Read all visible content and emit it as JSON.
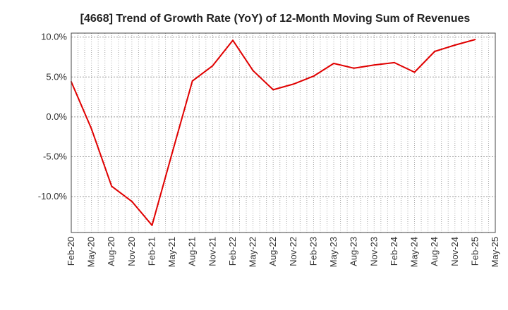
{
  "chart_data": {
    "type": "line",
    "title": "[4668]  Trend of Growth Rate (YoY) of 12-Month Moving Sum of Revenues",
    "xlabel": "",
    "ylabel": "",
    "x": [
      "Feb-20",
      "May-20",
      "Aug-20",
      "Nov-20",
      "Feb-21",
      "May-21",
      "Aug-21",
      "Nov-21",
      "Feb-22",
      "May-22",
      "Aug-22",
      "Nov-22",
      "Feb-23",
      "May-23",
      "Aug-23",
      "Nov-23",
      "Feb-24",
      "May-24",
      "Aug-24",
      "Nov-24",
      "Feb-25"
    ],
    "x_ticks": [
      "Feb-20",
      "May-20",
      "Aug-20",
      "Nov-20",
      "Feb-21",
      "May-21",
      "Aug-21",
      "Nov-21",
      "Feb-22",
      "May-22",
      "Aug-22",
      "Nov-22",
      "Feb-23",
      "May-23",
      "Aug-23",
      "Nov-23",
      "Feb-24",
      "May-24",
      "Aug-24",
      "Nov-24",
      "Feb-25",
      "May-25"
    ],
    "series": [
      {
        "color": "#e00000",
        "values": [
          4.4,
          -1.5,
          -8.7,
          -10.6,
          -13.6,
          -4.5,
          4.5,
          6.4,
          9.6,
          5.8,
          3.4,
          4.1,
          5.1,
          6.7,
          6.1,
          6.5,
          6.8,
          5.6,
          8.2,
          9.0,
          9.7
        ]
      }
    ],
    "ylim": [
      -14.5,
      10.5
    ],
    "y_ticks": [
      10,
      5,
      0,
      -5,
      -10
    ],
    "y_tick_labels": [
      "10.0%",
      "5.0%",
      "0.0%",
      "-5.0%",
      "-10.0%"
    ],
    "grid": true,
    "grid_style": "dotted",
    "legend": "none"
  }
}
